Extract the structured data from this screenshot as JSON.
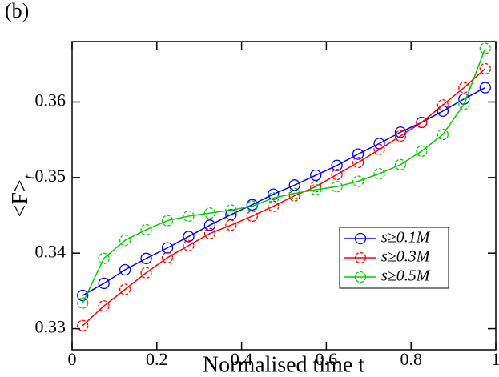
{
  "chart_data": {
    "type": "line",
    "panel_label": "(b)",
    "xlabel": "Normalised time t",
    "ylabel": "<F>",
    "ylabel_subscript": "t",
    "x": [
      0.025,
      0.075,
      0.125,
      0.175,
      0.225,
      0.275,
      0.325,
      0.375,
      0.425,
      0.475,
      0.525,
      0.575,
      0.625,
      0.675,
      0.725,
      0.775,
      0.825,
      0.875,
      0.925,
      0.975
    ],
    "series": [
      {
        "name": "s≥0.1M",
        "color": "#0000ff",
        "dashed": false,
        "values": [
          0.3344,
          0.336,
          0.3378,
          0.3393,
          0.3407,
          0.3422,
          0.3437,
          0.3451,
          0.3464,
          0.3478,
          0.349,
          0.3503,
          0.3516,
          0.3531,
          0.3545,
          0.356,
          0.3573,
          0.3588,
          0.3604,
          0.3619
        ]
      },
      {
        "name": "s≥0.3M",
        "color": "#ff0000",
        "dashed": true,
        "values": [
          0.3304,
          0.333,
          0.3352,
          0.3374,
          0.3394,
          0.341,
          0.3426,
          0.3437,
          0.3449,
          0.3462,
          0.3476,
          0.3488,
          0.3504,
          0.352,
          0.3537,
          0.3555,
          0.3573,
          0.3596,
          0.3619,
          0.3644
        ]
      },
      {
        "name": "s≥0.5M",
        "color": "#00cc00",
        "dashed": true,
        "values": [
          0.3334,
          0.3393,
          0.3417,
          0.3431,
          0.3443,
          0.3449,
          0.3453,
          0.3457,
          0.3462,
          0.3473,
          0.3479,
          0.3484,
          0.3488,
          0.3495,
          0.3505,
          0.3517,
          0.3535,
          0.3557,
          0.3597,
          0.3671
        ]
      }
    ],
    "xlim": [
      0,
      1
    ],
    "xticks": [
      0,
      0.2,
      0.4,
      0.6,
      0.8,
      1
    ],
    "ylim": [
      0.3272,
      0.368
    ],
    "yticks": [
      0.33,
      0.34,
      0.35,
      0.36
    ],
    "legend": "lower right"
  }
}
